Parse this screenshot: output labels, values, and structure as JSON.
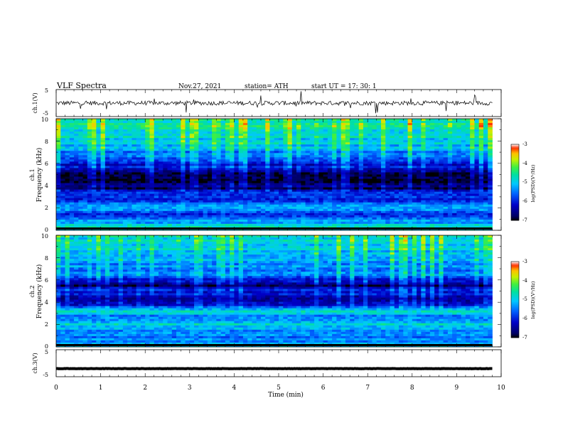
{
  "header": {
    "title": "VLF  Spectra",
    "date": "Nov.27, 2021",
    "station": "station= ATH",
    "start": "start  UT  =    17: 30: 1"
  },
  "chart_data": [
    {
      "type": "line",
      "name": "ch1-waveform",
      "ylabel": "ch.1(V)",
      "ylim": [
        -5,
        5
      ],
      "yticks": [
        "5",
        "-5"
      ],
      "xlim": [
        0,
        10
      ],
      "x_end": 9.8,
      "signal": {
        "baseline": 0.0,
        "noise_amplitude": 0.8,
        "spike_max": 4.0
      }
    },
    {
      "type": "heatmap",
      "name": "ch1-spectrogram",
      "ylabel_top": "ch.1",
      "ylabel": "Frequency  (kHz)",
      "ylim": [
        0,
        10
      ],
      "yticks": [
        "0",
        "2",
        "4",
        "6",
        "8",
        "10"
      ],
      "xlim": [
        0,
        10
      ],
      "x_end": 9.8,
      "colorbar": {
        "label": "log(PSD)(V²/Hz)",
        "range": [
          -7,
          -3
        ],
        "ticks": [
          "-3",
          "-4",
          "-5",
          "-6",
          "-7"
        ]
      },
      "band_profile": [
        {
          "f": 0.0,
          "level": -5.2
        },
        {
          "f": 0.3,
          "level": -4.6
        },
        {
          "f": 0.8,
          "level": -5.4
        },
        {
          "f": 1.5,
          "level": -5.8
        },
        {
          "f": 2.0,
          "level": -5.1
        },
        {
          "f": 2.6,
          "level": -5.9
        },
        {
          "f": 3.2,
          "level": -5.7
        },
        {
          "f": 3.6,
          "level": -6.4
        },
        {
          "f": 4.5,
          "level": -6.9
        },
        {
          "f": 5.2,
          "level": -6.4
        },
        {
          "f": 6.0,
          "level": -5.8
        },
        {
          "f": 6.6,
          "level": -5.6
        },
        {
          "f": 7.2,
          "level": -5.1
        },
        {
          "f": 8.0,
          "level": -4.8
        },
        {
          "f": 9.0,
          "level": -4.6
        },
        {
          "f": 10.0,
          "level": -4.4
        }
      ]
    },
    {
      "type": "heatmap",
      "name": "ch2-spectrogram",
      "ylabel_top": "ch.2",
      "ylabel": "Frequency  (kHz)",
      "ylim": [
        0,
        10
      ],
      "yticks": [
        "0",
        "2",
        "4",
        "6",
        "8",
        "10"
      ],
      "xlim": [
        0,
        10
      ],
      "x_end": 9.8,
      "colorbar": {
        "label": "log(PSD)(V²/Hz)",
        "range": [
          -7,
          -3
        ],
        "ticks": [
          "-3",
          "-4",
          "-5",
          "-6",
          "-7"
        ]
      },
      "band_profile": [
        {
          "f": 0.0,
          "level": -5.0
        },
        {
          "f": 0.5,
          "level": -5.3
        },
        {
          "f": 1.2,
          "level": -5.6
        },
        {
          "f": 2.0,
          "level": -4.9
        },
        {
          "f": 2.5,
          "level": -5.5
        },
        {
          "f": 3.2,
          "level": -4.9
        },
        {
          "f": 3.8,
          "level": -5.9
        },
        {
          "f": 4.3,
          "level": -6.6
        },
        {
          "f": 4.8,
          "level": -5.7
        },
        {
          "f": 5.5,
          "level": -6.5
        },
        {
          "f": 6.2,
          "level": -5.6
        },
        {
          "f": 7.0,
          "level": -5.3
        },
        {
          "f": 8.0,
          "level": -5.0
        },
        {
          "f": 9.0,
          "level": -4.8
        },
        {
          "f": 10.0,
          "level": -4.6
        }
      ]
    },
    {
      "type": "line",
      "name": "ch3-waveform",
      "ylabel": "ch.3(V)",
      "ylim": [
        -5,
        5
      ],
      "yticks": [
        "5",
        "-5"
      ],
      "xlim": [
        0,
        10
      ],
      "x_end": 9.8,
      "signal": {
        "baseline": -2.0,
        "noise_amplitude": 0.05,
        "spike_max": 0.0
      }
    }
  ],
  "x_axis": {
    "label": "Time  (min)",
    "ticks": [
      "0",
      "1",
      "2",
      "3",
      "4",
      "5",
      "6",
      "7",
      "8",
      "9",
      "10"
    ]
  }
}
